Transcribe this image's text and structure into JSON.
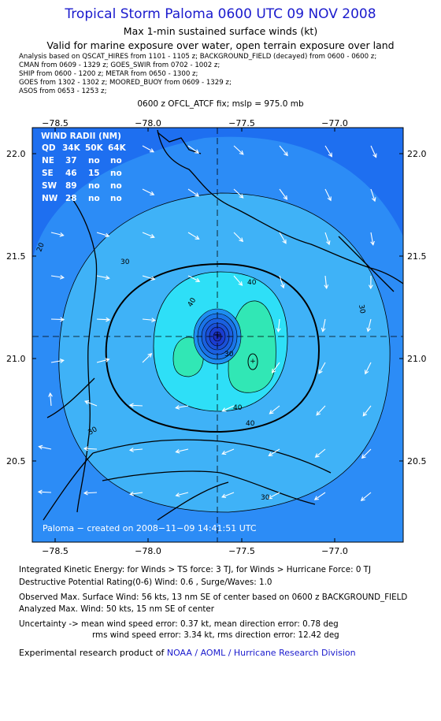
{
  "header": {
    "title": "Tropical Storm Paloma 0600 UTC 09 NOV 2008",
    "subtitle1": "Max 1-min sustained surface winds (kt)",
    "subtitle2": "Valid for marine exposure over water, open terrain exposure over land"
  },
  "analysis": [
    "Analysis based on   QSCAT_HIRES from 1101 - 1105 z;  BACKGROUND_FIELD (decayed) from 0600 - 0600 z;",
    "CMAN from 0609 - 1329 z;  GOES_SWIR from 0702 - 1002 z;",
    "SHIP from 0600 - 1200 z;  METAR from 0650 - 1300 z;",
    "GOES from 1302 - 1302 z;  MOORED_BUOY from 0609 - 1329 z;",
    "ASOS from 0653 - 1253 z;"
  ],
  "fix_line": "0600 z OFCL_ATCF fix; mslp = 975.0 mb",
  "map": {
    "lon_ticks": [
      "−78.5",
      "−78.0",
      "−77.5",
      "−77.0"
    ],
    "lat_ticks": [
      "22.0",
      "21.5",
      "21.0",
      "20.5"
    ],
    "contour_labels": [
      "20",
      "30",
      "30",
      "30",
      "30",
      "40",
      "40",
      "40",
      "40",
      "30"
    ],
    "credit": "Paloma − created on 2008−11−09 14:41:51 UTC",
    "colors": {
      "deep": "#1e6ff0",
      "c20": "#2c8cf6",
      "c30": "#3fb2f7",
      "c40": "#2edff7",
      "c50": "#31e7b5",
      "center": "#1a3cd0"
    }
  },
  "wind_radii": {
    "title": "WIND RADII (NM)",
    "header": [
      "QD",
      "34K",
      "50K",
      "64K"
    ],
    "rows": [
      [
        "NE",
        "37",
        "no",
        "no"
      ],
      [
        "SE",
        "46",
        "15",
        "no"
      ],
      [
        "SW",
        "89",
        "no",
        "no"
      ],
      [
        "NW",
        "28",
        "no",
        "no"
      ]
    ]
  },
  "footer": {
    "ike": "Integrated Kinetic Energy:  for Winds > TS force: 3 TJ,  for Winds > Hurricane Force: 0 TJ",
    "dpr": "Destructive Potential Rating(0-6)   Wind: 0.6 , Surge/Waves: 1.0",
    "observed": "Observed Max. Surface Wind: 56 kts, 13 nm SE of center based on 0600 z BACKGROUND_FIELD",
    "analyzed": "Analyzed Max. Wind: 50 kts, 15 nm SE of center",
    "uncertainty1": "Uncertainty -> mean wind speed error: 0.37 kt,   mean direction error: 0.78 deg",
    "uncertainty2": "rms wind speed error: 3.34 kt,   rms direction error: 12.42 deg",
    "credit_prefix": "Experimental research product of ",
    "credit_org": "NOAA / AOML / Hurricane Research Division"
  }
}
